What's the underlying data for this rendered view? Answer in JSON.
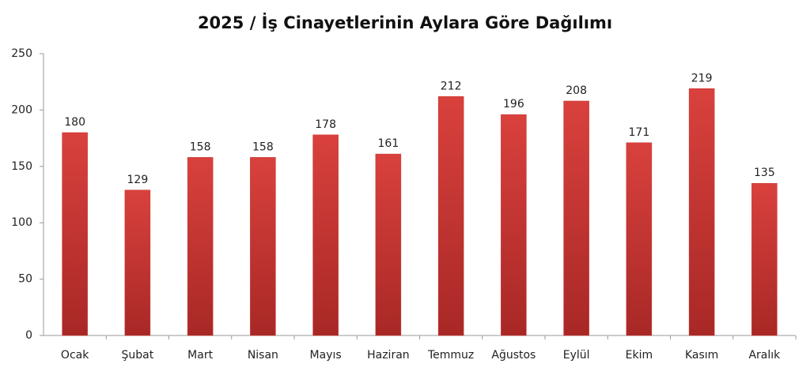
{
  "chart_data": {
    "type": "bar",
    "title": "2025 / İş Cinayetlerinin Aylara Göre Dağılımı",
    "categories": [
      "Ocak",
      "Şubat",
      "Mart",
      "Nisan",
      "Mayıs",
      "Haziran",
      "Temmuz",
      "Ağustos",
      "Eylül",
      "Ekim",
      "Kasım",
      "Aralık"
    ],
    "values": [
      180,
      129,
      158,
      158,
      178,
      161,
      212,
      196,
      208,
      171,
      219,
      135
    ],
    "color": "#c8312f",
    "ylim": [
      0,
      250
    ],
    "yticks": [
      0,
      50,
      100,
      150,
      200,
      250
    ],
    "grid": false
  }
}
